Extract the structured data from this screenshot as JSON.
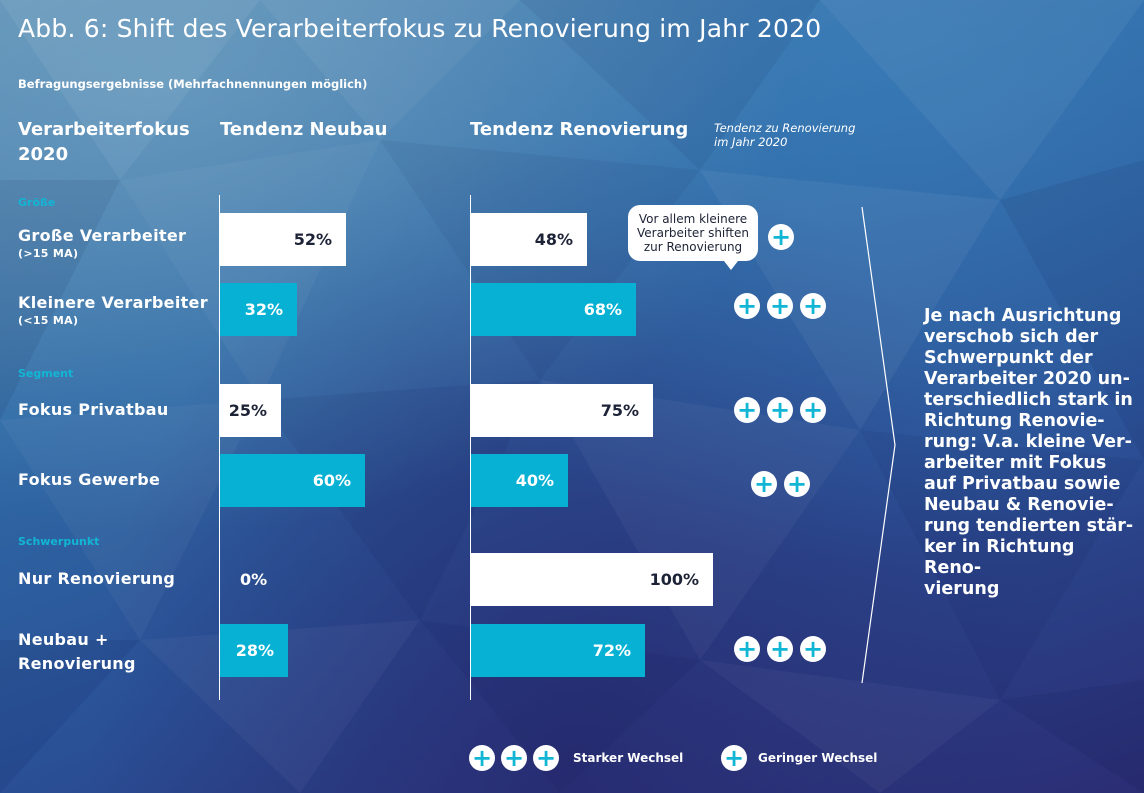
{
  "title": "Abb. 6: Shift des Verarbeiterfokus zu Renovierung im Jahr 2020",
  "subtitle": "Befragungsergebnisse (Mehrfachnennungen möglich)",
  "columns": {
    "focus_line1": "Verarbeiterfokus",
    "focus_line2": "2020",
    "neubau": "Tendenz Neubau",
    "renovierung": "Tendenz Renovierung",
    "trend_line1": "Tendenz zu Renovierung",
    "trend_line2": "im  Jahr 2020"
  },
  "colors": {
    "white_bar": "#ffffff",
    "cyan_bar": "#07b1d3",
    "group_label": "#12b6d4"
  },
  "chart_data": {
    "type": "bar",
    "orientation": "horizontal",
    "groups": [
      "Größe",
      "Segment",
      "Schwerpunkt"
    ],
    "categories": [
      {
        "group": "Größe",
        "label": "Große Verarbeiter",
        "sublabel": "(>15 MA)",
        "neubau_label": "52%",
        "renovierung_label": "48%",
        "plus_count": 1
      },
      {
        "group": "Größe",
        "label": "Kleinere Verarbeiter",
        "sublabel": "(<15 MA)",
        "neubau_label": "32%",
        "renovierung_label": "68%",
        "plus_count": 3
      },
      {
        "group": "Segment",
        "label": "Fokus Privatbau",
        "sublabel": "",
        "neubau_label": "25%",
        "renovierung_label": "75%",
        "plus_count": 3
      },
      {
        "group": "Segment",
        "label": "Fokus Gewerbe",
        "sublabel": "",
        "neubau_label": "60%",
        "renovierung_label": "40%",
        "plus_count": 2
      },
      {
        "group": "Schwerpunkt",
        "label": "Nur Renovierung",
        "sublabel": "",
        "neubau_label": "0%",
        "renovierung_label": "100%",
        "plus_count": 0
      },
      {
        "group": "Schwerpunkt",
        "label": "Neubau +",
        "label2": "Renovierung",
        "sublabel": "",
        "neubau_label": "28%",
        "renovierung_label": "72%",
        "plus_count": 3
      }
    ],
    "series": [
      {
        "name": "Tendenz Neubau",
        "values": [
          52,
          32,
          25,
          60,
          0,
          28
        ]
      },
      {
        "name": "Tendenz Renovierung",
        "values": [
          48,
          68,
          75,
          40,
          100,
          72
        ]
      }
    ],
    "xlim": [
      0,
      100
    ]
  },
  "callout": {
    "line1": "Vor allem kleinere",
    "line2": "Verarbeiter shiften",
    "line3": "zur Renovierung"
  },
  "summary": {
    "lines": [
      "Je nach Ausrichtung",
      "verschob sich der",
      "Schwerpunkt der",
      "Verarbeiter 2020 un-",
      "terschiedlich stark in",
      "Richtung Renovie-",
      "rung: V.a. kleine Ver-",
      "arbeiter mit Fokus",
      "auf Privatbau sowie",
      "Neubau & Renovie-",
      "rung tendierten stär-",
      "ker in Richtung Reno-",
      "vierung"
    ]
  },
  "legend": {
    "strong": "Starker Wechsel",
    "weak": "Geringer Wechsel",
    "plus_symbol": "+"
  }
}
